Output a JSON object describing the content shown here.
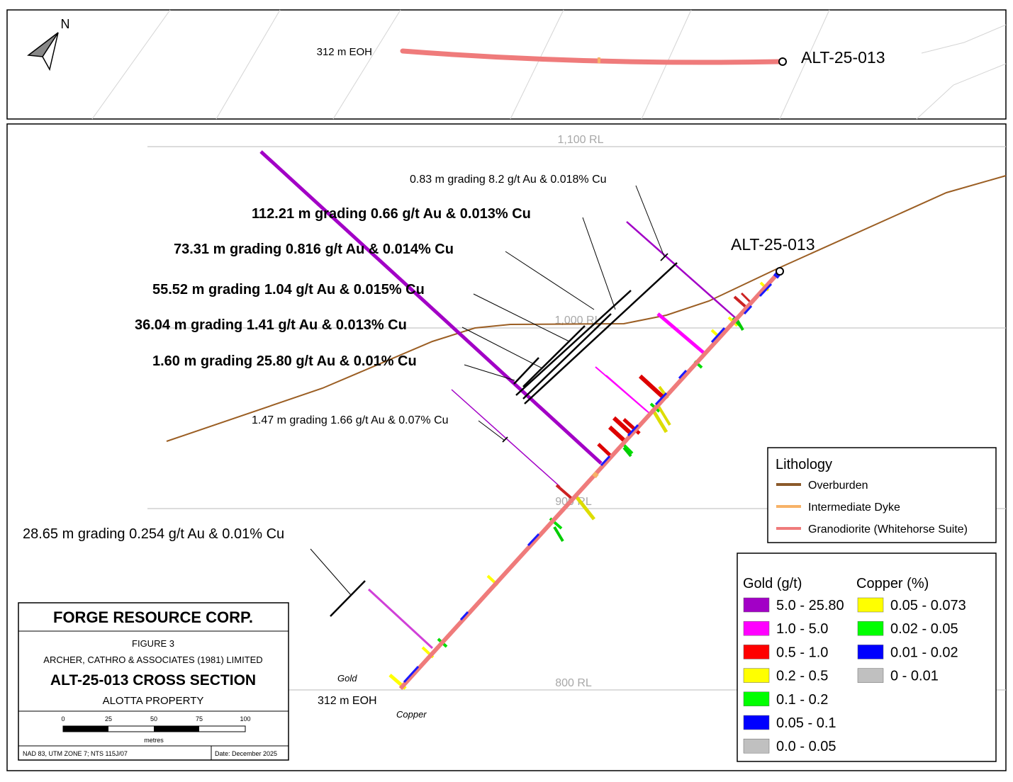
{
  "plan_view": {
    "north_label": "N",
    "eoh_label": "312 m EOH",
    "hole_label": "ALT-25-013"
  },
  "section": {
    "rl_labels": [
      "1,100 RL",
      "1,000 RL",
      "900 RL",
      "800 RL"
    ],
    "hole_label": "ALT-25-013",
    "eoh_label": "312 m EOH",
    "gold_label": "Gold",
    "copper_label": "Copper",
    "intercepts": [
      "0.83 m grading 8.2 g/t Au & 0.018% Cu",
      "112.21 m grading 0.66 g/t Au & 0.013% Cu",
      "73.31 m grading 0.816 g/t Au & 0.014% Cu",
      "55.52 m grading 1.04 g/t Au & 0.015% Cu",
      "36.04 m grading 1.41 g/t Au & 0.013% Cu",
      "1.60 m grading 25.80 g/t Au & 0.01% Cu",
      "1.47 m grading 1.66 g/t Au & 0.07% Cu",
      "28.65 m grading 0.254 g/t Au & 0.01% Cu"
    ]
  },
  "lithology_legend": {
    "title": "Lithology",
    "items": [
      {
        "label": "Overburden",
        "color": "#8B5A2B"
      },
      {
        "label": "Intermediate Dyke",
        "color": "#F7B267"
      },
      {
        "label": "Granodiorite (Whitehorse Suite)",
        "color": "#EF7B7B"
      }
    ]
  },
  "grade_legend": {
    "gold_title": "Gold (g/t)",
    "copper_title": "Copper (%)",
    "gold": [
      {
        "label": "5.0 - 25.80",
        "color": "#A200C6"
      },
      {
        "label": "1.0 - 5.0",
        "color": "#FF00FF"
      },
      {
        "label": "0.5 - 1.0",
        "color": "#FF0000"
      },
      {
        "label": "0.2 - 0.5",
        "color": "#FFFF00"
      },
      {
        "label": "0.1 - 0.2",
        "color": "#00FF00"
      },
      {
        "label": "0.05 - 0.1",
        "color": "#0000FF"
      },
      {
        "label": "0.0 - 0.05",
        "color": "#C0C0C0"
      }
    ],
    "copper": [
      {
        "label": "0.05 - 0.073",
        "color": "#FFFF00"
      },
      {
        "label": "0.02 - 0.05",
        "color": "#00FF00"
      },
      {
        "label": "0.01 - 0.02",
        "color": "#0000FF"
      },
      {
        "label": "0 - 0.01",
        "color": "#C0C0C0"
      }
    ]
  },
  "title_block": {
    "company": "FORGE RESOURCE CORP.",
    "figure": "FIGURE 3",
    "author": "ARCHER, CATHRO & ASSOCIATES (1981) LIMITED",
    "title": "ALT-25-013 CROSS SECTION",
    "property": "ALOTTA PROPERTY",
    "scale_ticks": [
      "0",
      "25",
      "50",
      "75",
      "100"
    ],
    "scale_unit": "metres",
    "projection": "NAD 83, UTM ZONE 7; NTS 115J/07",
    "date": "Date: December 2025"
  }
}
